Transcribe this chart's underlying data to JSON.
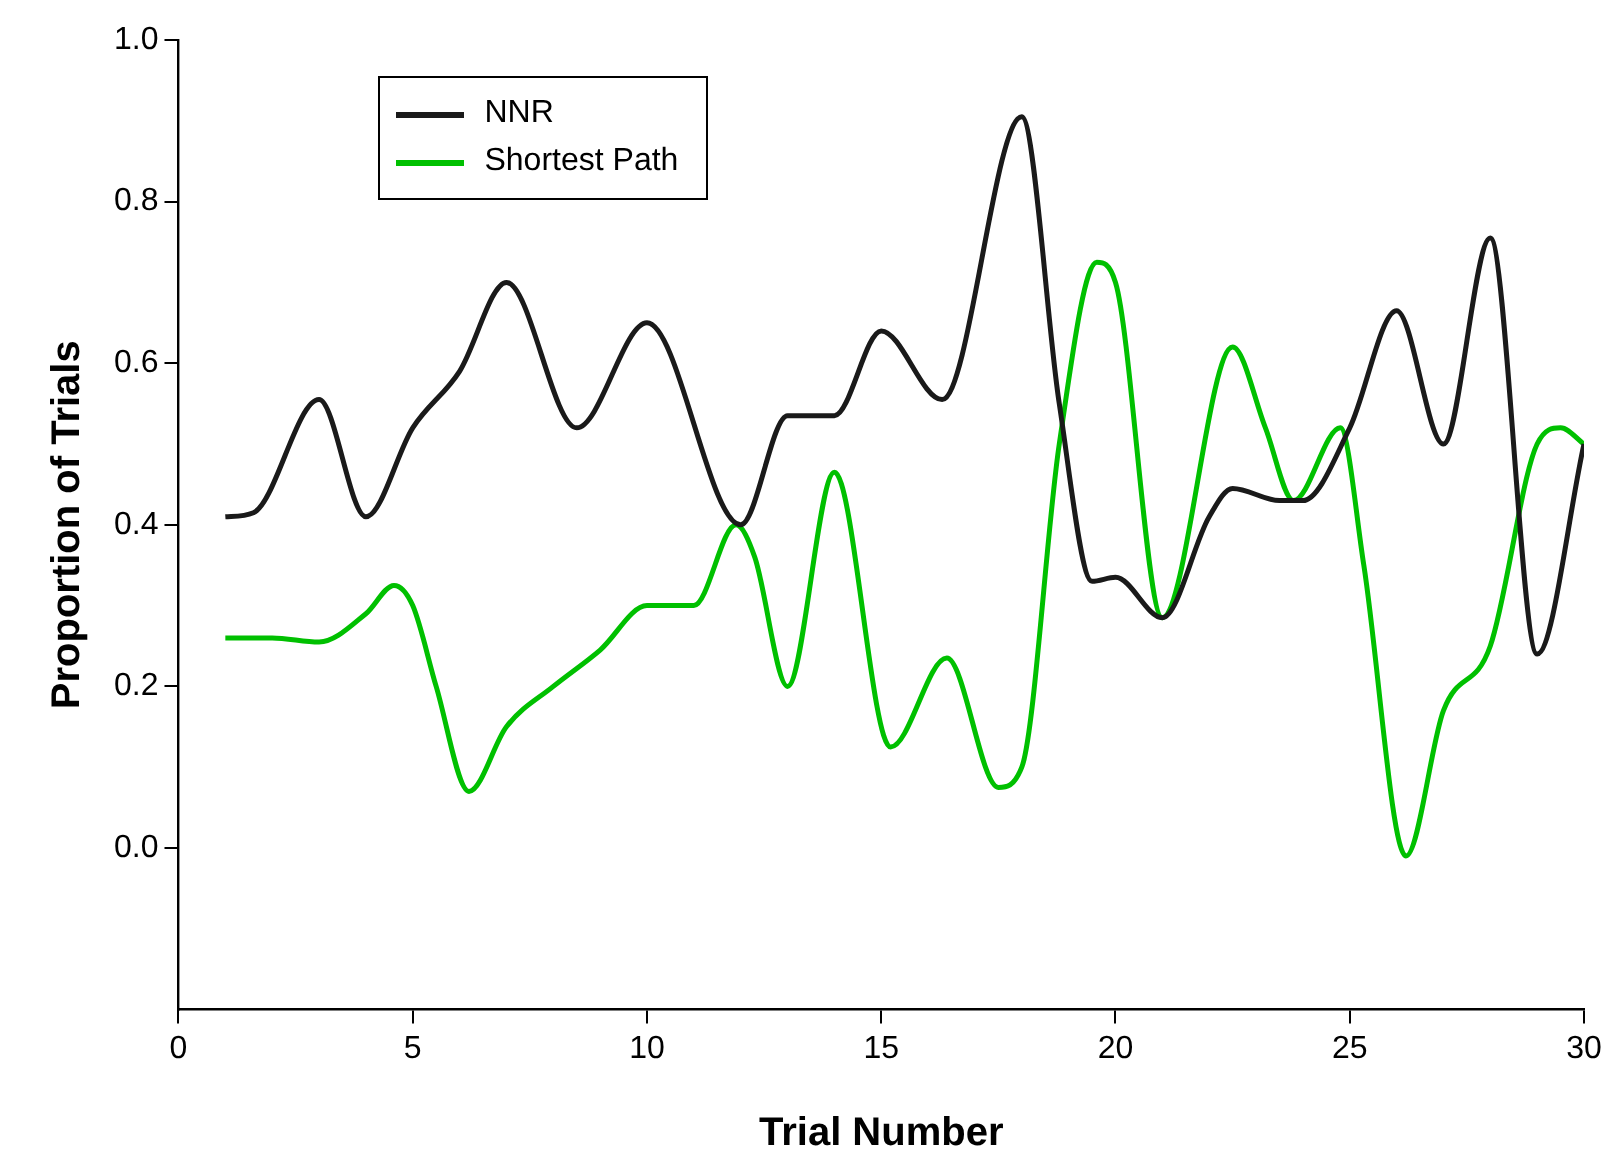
{
  "chart_data": {
    "type": "line",
    "xlabel": "Trial Number",
    "ylabel": "Proportion of Trials",
    "xlim": [
      0,
      30
    ],
    "xticks": [
      0,
      5,
      10,
      15,
      20,
      25,
      30
    ],
    "ylim": [
      -0.2,
      1.0
    ],
    "yticks": [
      {
        "value": 0,
        "label": "0.0"
      },
      {
        "value": 0.2,
        "label": "0.2"
      },
      {
        "value": 0.4,
        "label": "0.4"
      },
      {
        "value": 0.6,
        "label": "0.6"
      },
      {
        "value": 0.8,
        "label": "0.8"
      },
      {
        "value": 1.0,
        "label": "1.0"
      }
    ],
    "legend": "top left",
    "grid": false,
    "marker": "none",
    "line_style": "solid",
    "series": [
      {
        "name": "NNR",
        "color": "#1a1a1a",
        "x": [
          1,
          1.6,
          3,
          4,
          5,
          6,
          7,
          8.5,
          10,
          12,
          13,
          14,
          15,
          16.3,
          18,
          18.8,
          19.5,
          20,
          21,
          22,
          22.5,
          23.5,
          24,
          25,
          26,
          27,
          28,
          29,
          30
        ],
        "values": [
          0.41,
          0.415,
          0.555,
          0.41,
          0.52,
          0.59,
          0.7,
          0.52,
          0.65,
          0.4,
          0.535,
          0.535,
          0.64,
          0.555,
          0.905,
          0.55,
          0.33,
          0.335,
          0.285,
          0.41,
          0.445,
          0.43,
          0.43,
          0.52,
          0.665,
          0.5,
          0.755,
          0.24,
          0.5
        ]
      },
      {
        "name": "Shortest Path",
        "color": "#00c000",
        "x": [
          1,
          2,
          3,
          4,
          4.6,
          5,
          5.5,
          6.2,
          7,
          8,
          9,
          10,
          11,
          11.9,
          12.3,
          13,
          14,
          15.2,
          16.4,
          17.5,
          18,
          18.8,
          19.6,
          20,
          21,
          22.5,
          23.2,
          23.8,
          24.8,
          25.3,
          26.2,
          27,
          28,
          29,
          29.5,
          30
        ],
        "values": [
          0.26,
          0.26,
          0.255,
          0.29,
          0.325,
          0.3,
          0.2,
          0.07,
          0.15,
          0.2,
          0.245,
          0.3,
          0.3,
          0.4,
          0.36,
          0.2,
          0.465,
          0.125,
          0.235,
          0.075,
          0.1,
          0.5,
          0.725,
          0.7,
          0.285,
          0.62,
          0.52,
          0.43,
          0.52,
          0.35,
          -0.01,
          0.17,
          0.25,
          0.5,
          0.52,
          0.5
        ]
      }
    ]
  }
}
